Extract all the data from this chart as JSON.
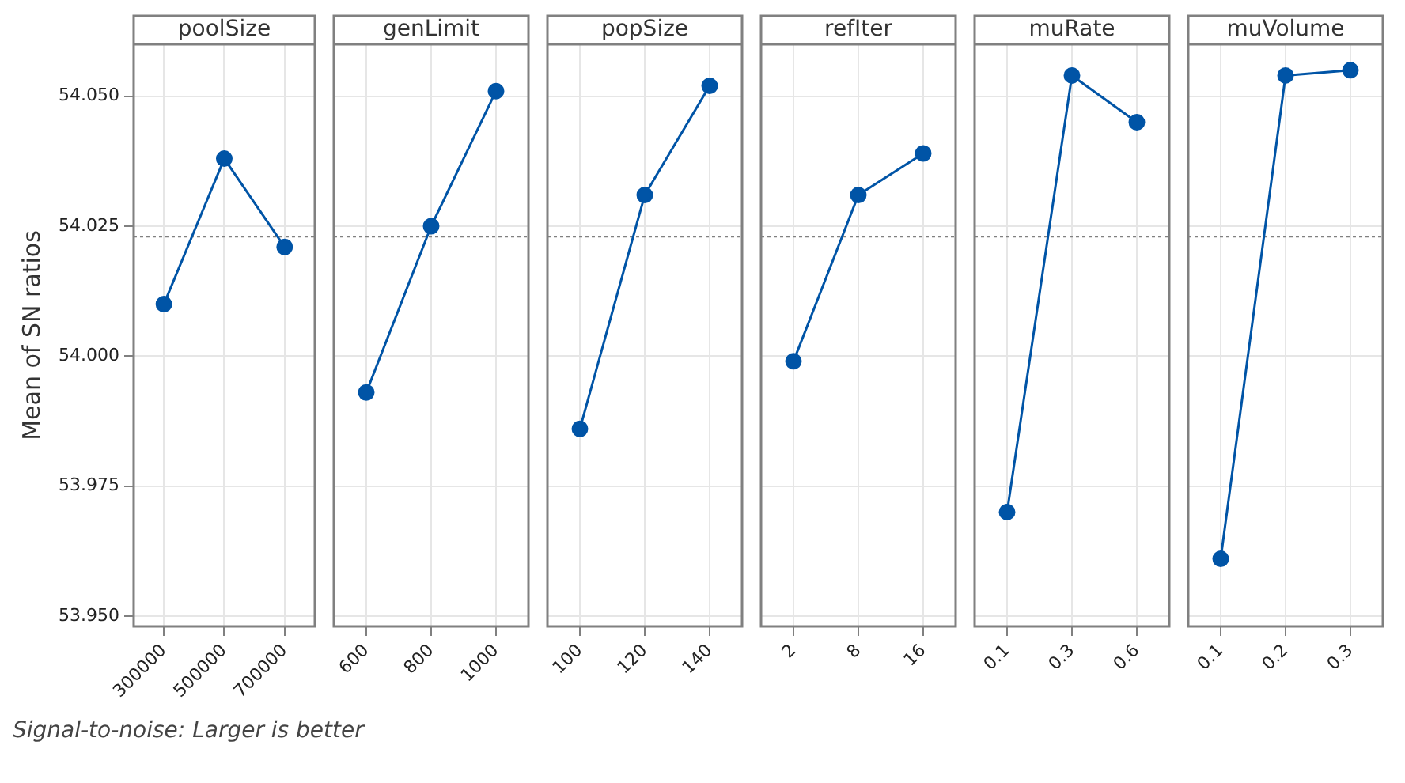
{
  "chart_data": [
    {
      "type": "line",
      "title": "poolSize",
      "ylabel": "Mean of SN ratios",
      "categories": [
        "300000",
        "500000",
        "700000"
      ],
      "values": [
        54.01,
        54.038,
        54.021
      ],
      "color": "#0054a6",
      "ylim": [
        53.948,
        54.06
      ],
      "yticks": [
        {
          "value": 53.95,
          "label": "53.950"
        },
        {
          "value": 53.975,
          "label": "53.975"
        },
        {
          "value": 54.0,
          "label": "54.000"
        },
        {
          "value": 54.025,
          "label": "54.025"
        },
        {
          "value": 54.05,
          "label": "54.050"
        }
      ],
      "grid": true,
      "marker": "circle",
      "ref_lines": [
        {
          "axis": "y",
          "value": 54.023,
          "color": "#808080",
          "line_style": "dotted"
        }
      ],
      "annotations": [
        "Signal-to-noise: Larger is better"
      ]
    },
    {
      "type": "line",
      "title": "genLimit",
      "categories": [
        "600",
        "800",
        "1000"
      ],
      "values": [
        53.993,
        54.025,
        54.051
      ],
      "color": "#0054a6",
      "ylim": [
        53.948,
        54.06
      ],
      "yticks": [
        53.95,
        53.975,
        54.0,
        54.025,
        54.05
      ],
      "grid": true,
      "marker": "circle",
      "tick_labels": "x",
      "ref_lines": [
        {
          "axis": "y",
          "value": 54.023,
          "color": "#808080",
          "line_style": "dotted"
        }
      ]
    },
    {
      "type": "line",
      "title": "popSize",
      "categories": [
        "100",
        "120",
        "140"
      ],
      "values": [
        53.986,
        54.031,
        54.052
      ],
      "color": "#0054a6",
      "ylim": [
        53.948,
        54.06
      ],
      "yticks": [
        53.95,
        53.975,
        54.0,
        54.025,
        54.05
      ],
      "grid": true,
      "marker": "circle",
      "tick_labels": "x",
      "ref_lines": [
        {
          "axis": "y",
          "value": 54.023,
          "color": "#808080",
          "line_style": "dotted"
        }
      ]
    },
    {
      "type": "line",
      "title": "refIter",
      "categories": [
        "2",
        "8",
        "16"
      ],
      "values": [
        53.999,
        54.031,
        54.039
      ],
      "color": "#0054a6",
      "ylim": [
        53.948,
        54.06
      ],
      "yticks": [
        53.95,
        53.975,
        54.0,
        54.025,
        54.05
      ],
      "grid": true,
      "marker": "circle",
      "tick_labels": "x",
      "ref_lines": [
        {
          "axis": "y",
          "value": 54.023,
          "color": "#808080",
          "line_style": "dotted"
        }
      ]
    },
    {
      "type": "line",
      "title": "muRate",
      "categories": [
        "0.1",
        "0.3",
        "0.6"
      ],
      "values": [
        53.97,
        54.054,
        54.045
      ],
      "color": "#0054a6",
      "ylim": [
        53.948,
        54.06
      ],
      "yticks": [
        53.95,
        53.975,
        54.0,
        54.025,
        54.05
      ],
      "grid": true,
      "marker": "circle",
      "tick_labels": "x",
      "ref_lines": [
        {
          "axis": "y",
          "value": 54.023,
          "color": "#808080",
          "line_style": "dotted"
        }
      ]
    },
    {
      "type": "line",
      "title": "muVolume",
      "categories": [
        "0.1",
        "0.2",
        "0.3"
      ],
      "values": [
        53.961,
        54.054,
        54.055
      ],
      "color": "#0054a6",
      "ylim": [
        53.948,
        54.06
      ],
      "yticks": [
        53.95,
        53.975,
        54.0,
        54.025,
        54.05
      ],
      "grid": true,
      "marker": "circle",
      "tick_labels": "x",
      "ref_lines": [
        {
          "axis": "y",
          "value": 54.023,
          "color": "#808080",
          "line_style": "dotted"
        }
      ]
    }
  ]
}
